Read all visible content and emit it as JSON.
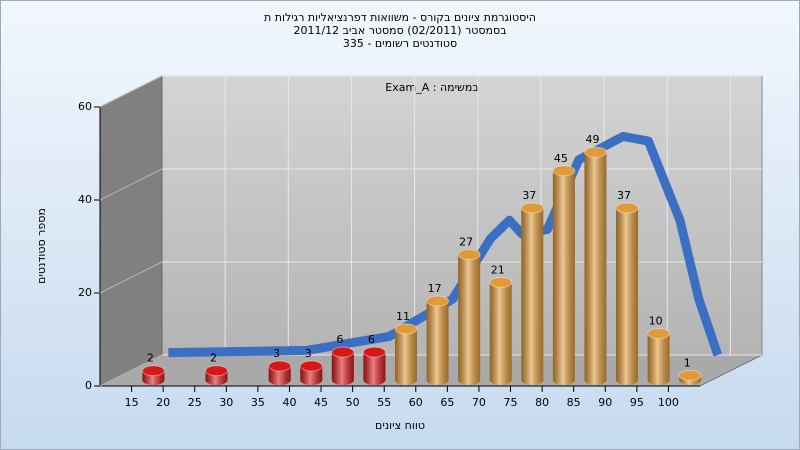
{
  "chart_data": {
    "type": "bar",
    "title_lines": [
      "היסטוגרמת ציונים בקורס - משוואות דפרנציאליות רגילות ת",
      "בסמסטר (02/2011) סמסטר אביב 2011/12",
      "סטודנטים רשומים - 335"
    ],
    "annotation": "Exam_A : במשימה",
    "x_label": "טווח ציונים",
    "y_label": "מספר סטודנטים",
    "xlim": [
      10,
      105
    ],
    "xticks": [
      15,
      20,
      25,
      30,
      35,
      40,
      45,
      50,
      55,
      60,
      65,
      70,
      75,
      80,
      85,
      90,
      95,
      100
    ],
    "ylim": [
      0,
      60
    ],
    "yticks": [
      0,
      20,
      40,
      60
    ],
    "grid": true,
    "series": [
      {
        "color": "#d81818",
        "x": [
          17.5,
          27.5,
          37.5,
          42.5,
          47.5,
          52.5
        ],
        "values": [
          2,
          2,
          3,
          3,
          6,
          6
        ]
      },
      {
        "color": "#e09a38",
        "x": [
          57.5,
          62.5,
          67.5,
          72.5,
          77.5,
          82.5,
          87.5,
          92.5,
          97.5,
          102.5
        ],
        "values": [
          11,
          17,
          27,
          21,
          37,
          45,
          49,
          37,
          10,
          1
        ]
      }
    ],
    "curve": {
      "color": "#3a6fc4",
      "x": [
        11,
        33,
        46,
        56,
        62,
        65,
        67,
        71,
        76,
        83,
        87,
        92,
        95,
        98
      ],
      "values": [
        0.5,
        1,
        4,
        12,
        25,
        29,
        26,
        27,
        42,
        47,
        46,
        29,
        12,
        0
      ]
    }
  }
}
